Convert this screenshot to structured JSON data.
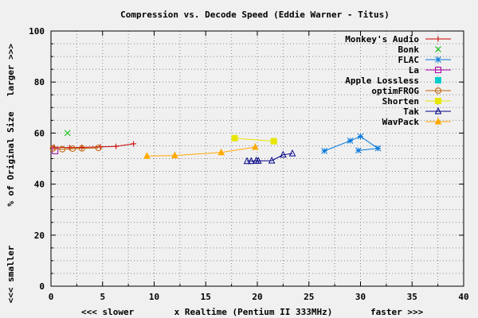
{
  "chart_data": {
    "type": "line",
    "title": "Compression vs. Decode Speed (Eddie Warner - Titus)",
    "xlabel": "x Realtime (Pentium II 333MHz)",
    "xlabel_left": "<<< slower",
    "xlabel_right": "faster >>>",
    "ylabel": "% of Original Size",
    "ylabel_top": "larger >>>",
    "ylabel_bottom": "<<< smaller",
    "xlim": [
      0,
      40
    ],
    "ylim": [
      0,
      100
    ],
    "xticks": [
      "0",
      "5",
      "10",
      "15",
      "20",
      "25",
      "30",
      "35",
      "40"
    ],
    "yticks": [
      "0",
      "20",
      "40",
      "60",
      "80",
      "100"
    ],
    "grid": true,
    "legend_position": "top-right",
    "series": [
      {
        "name": "Monkey's Audio",
        "color": "#cc0000",
        "marker": "plus",
        "linestyle": "solid",
        "points": [
          [
            0.3,
            54.5
          ],
          [
            1.8,
            54.3
          ],
          [
            3.0,
            54.4
          ],
          [
            4.8,
            54.6
          ],
          [
            6.3,
            54.8
          ],
          [
            8.0,
            55.8
          ]
        ]
      },
      {
        "name": "Bonk",
        "color": "#00bb00",
        "marker": "cross",
        "linestyle": "none",
        "points": [
          [
            1.6,
            60.0
          ]
        ]
      },
      {
        "name": "FLAC",
        "color": "#0077dd",
        "marker": "star",
        "linestyle": "solid",
        "points": [
          [
            26.5,
            53.0
          ],
          [
            29.0,
            57.0
          ],
          [
            30.0,
            58.7
          ],
          [
            31.7,
            54.0
          ],
          [
            29.8,
            53.2
          ]
        ]
      },
      {
        "name": "La",
        "color": "#aa00aa",
        "marker": "square",
        "linestyle": "solid",
        "points": [
          [
            0.4,
            53.0
          ]
        ]
      },
      {
        "name": "Apple Lossless",
        "color": "#00cccc",
        "marker": "filled-square",
        "linestyle": "none",
        "points": []
      },
      {
        "name": "optimFROG",
        "color": "#c06000",
        "marker": "circle",
        "linestyle": "solid",
        "points": [
          [
            0.2,
            54.0
          ],
          [
            1.1,
            53.7
          ],
          [
            2.1,
            53.9
          ],
          [
            3.0,
            54.0
          ],
          [
            4.6,
            54.2
          ]
        ]
      },
      {
        "name": "Shorten",
        "color": "#e6e600",
        "marker": "filled-square",
        "linestyle": "solid",
        "points": [
          [
            17.8,
            58.0
          ],
          [
            21.6,
            56.8
          ]
        ]
      },
      {
        "name": "Tak",
        "color": "#000088",
        "marker": "triangle",
        "linestyle": "solid",
        "points": [
          [
            19.0,
            49.0
          ],
          [
            19.4,
            49.0
          ],
          [
            19.9,
            49.2
          ],
          [
            20.1,
            49.1
          ],
          [
            21.4,
            49.2
          ],
          [
            22.5,
            51.5
          ],
          [
            23.4,
            52.0
          ]
        ]
      },
      {
        "name": "WavPack",
        "color": "#ffaa00",
        "marker": "filled-triangle",
        "linestyle": "solid",
        "points": [
          [
            9.3,
            51.0
          ],
          [
            12.0,
            51.2
          ],
          [
            16.5,
            52.4
          ],
          [
            19.8,
            54.5
          ]
        ]
      }
    ]
  }
}
